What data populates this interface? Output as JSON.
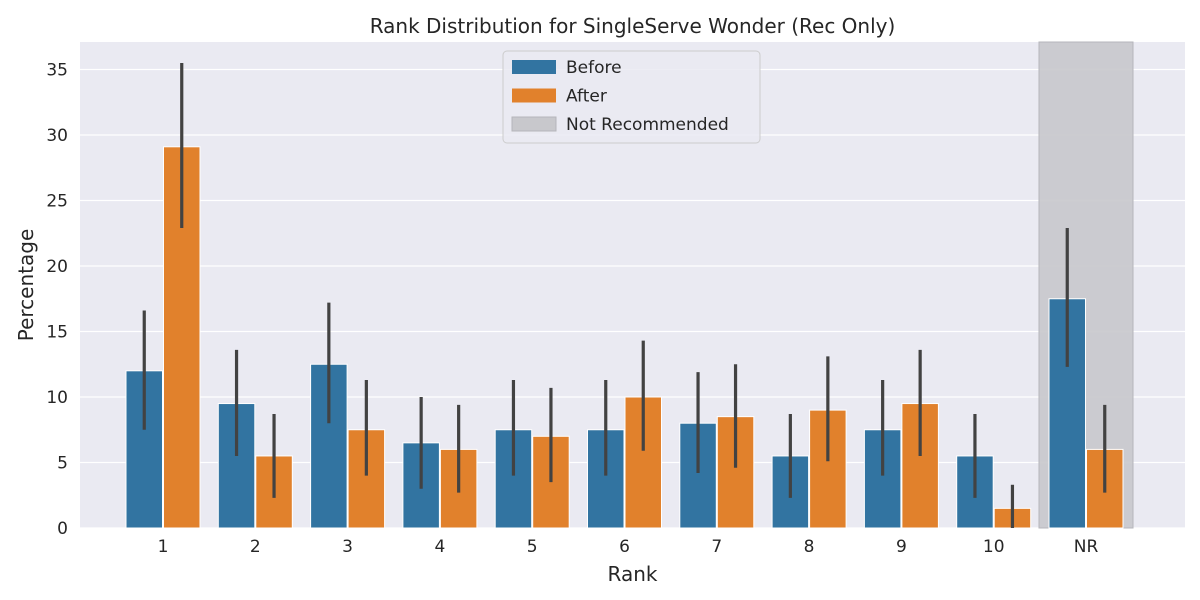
{
  "chart_data": {
    "type": "bar",
    "title": "Rank Distribution for SingleServe Wonder (Rec Only)",
    "xlabel": "Rank",
    "ylabel": "Percentage",
    "categories": [
      "1",
      "2",
      "3",
      "4",
      "5",
      "6",
      "7",
      "8",
      "9",
      "10",
      "NR"
    ],
    "series": [
      {
        "name": "Before",
        "color": "#3274a1",
        "values": [
          12.0,
          9.5,
          12.5,
          6.5,
          7.5,
          7.5,
          8.0,
          5.5,
          7.5,
          5.5,
          17.5
        ],
        "ci_low": [
          7.5,
          5.5,
          8.0,
          3.0,
          4.0,
          4.0,
          4.2,
          2.3,
          4.0,
          2.3,
          12.3
        ],
        "ci_high": [
          16.6,
          13.6,
          17.2,
          10.0,
          11.3,
          11.3,
          11.9,
          8.7,
          11.3,
          8.7,
          22.9
        ]
      },
      {
        "name": "After",
        "color": "#e1812c",
        "values": [
          29.1,
          5.5,
          7.5,
          6.0,
          7.0,
          10.0,
          8.5,
          9.0,
          9.5,
          1.5,
          6.0
        ],
        "ci_low": [
          22.9,
          2.3,
          4.0,
          2.7,
          3.5,
          5.9,
          4.6,
          5.1,
          5.5,
          0.0,
          2.7
        ],
        "ci_high": [
          35.5,
          8.7,
          11.3,
          9.4,
          10.7,
          14.3,
          12.5,
          13.1,
          13.6,
          3.3,
          9.4
        ]
      }
    ],
    "highlight": {
      "label": "Not Recommended",
      "category": "NR",
      "color": "#c8c8cc"
    },
    "ylim": [
      0,
      37.1
    ],
    "yticks": [
      0,
      5,
      10,
      15,
      20,
      25,
      30,
      35
    ],
    "grid": true,
    "legend_position": "top-center",
    "colors": {
      "background": "#eaeaf2",
      "grid": "#ffffff",
      "error_bar": "#424242"
    }
  }
}
